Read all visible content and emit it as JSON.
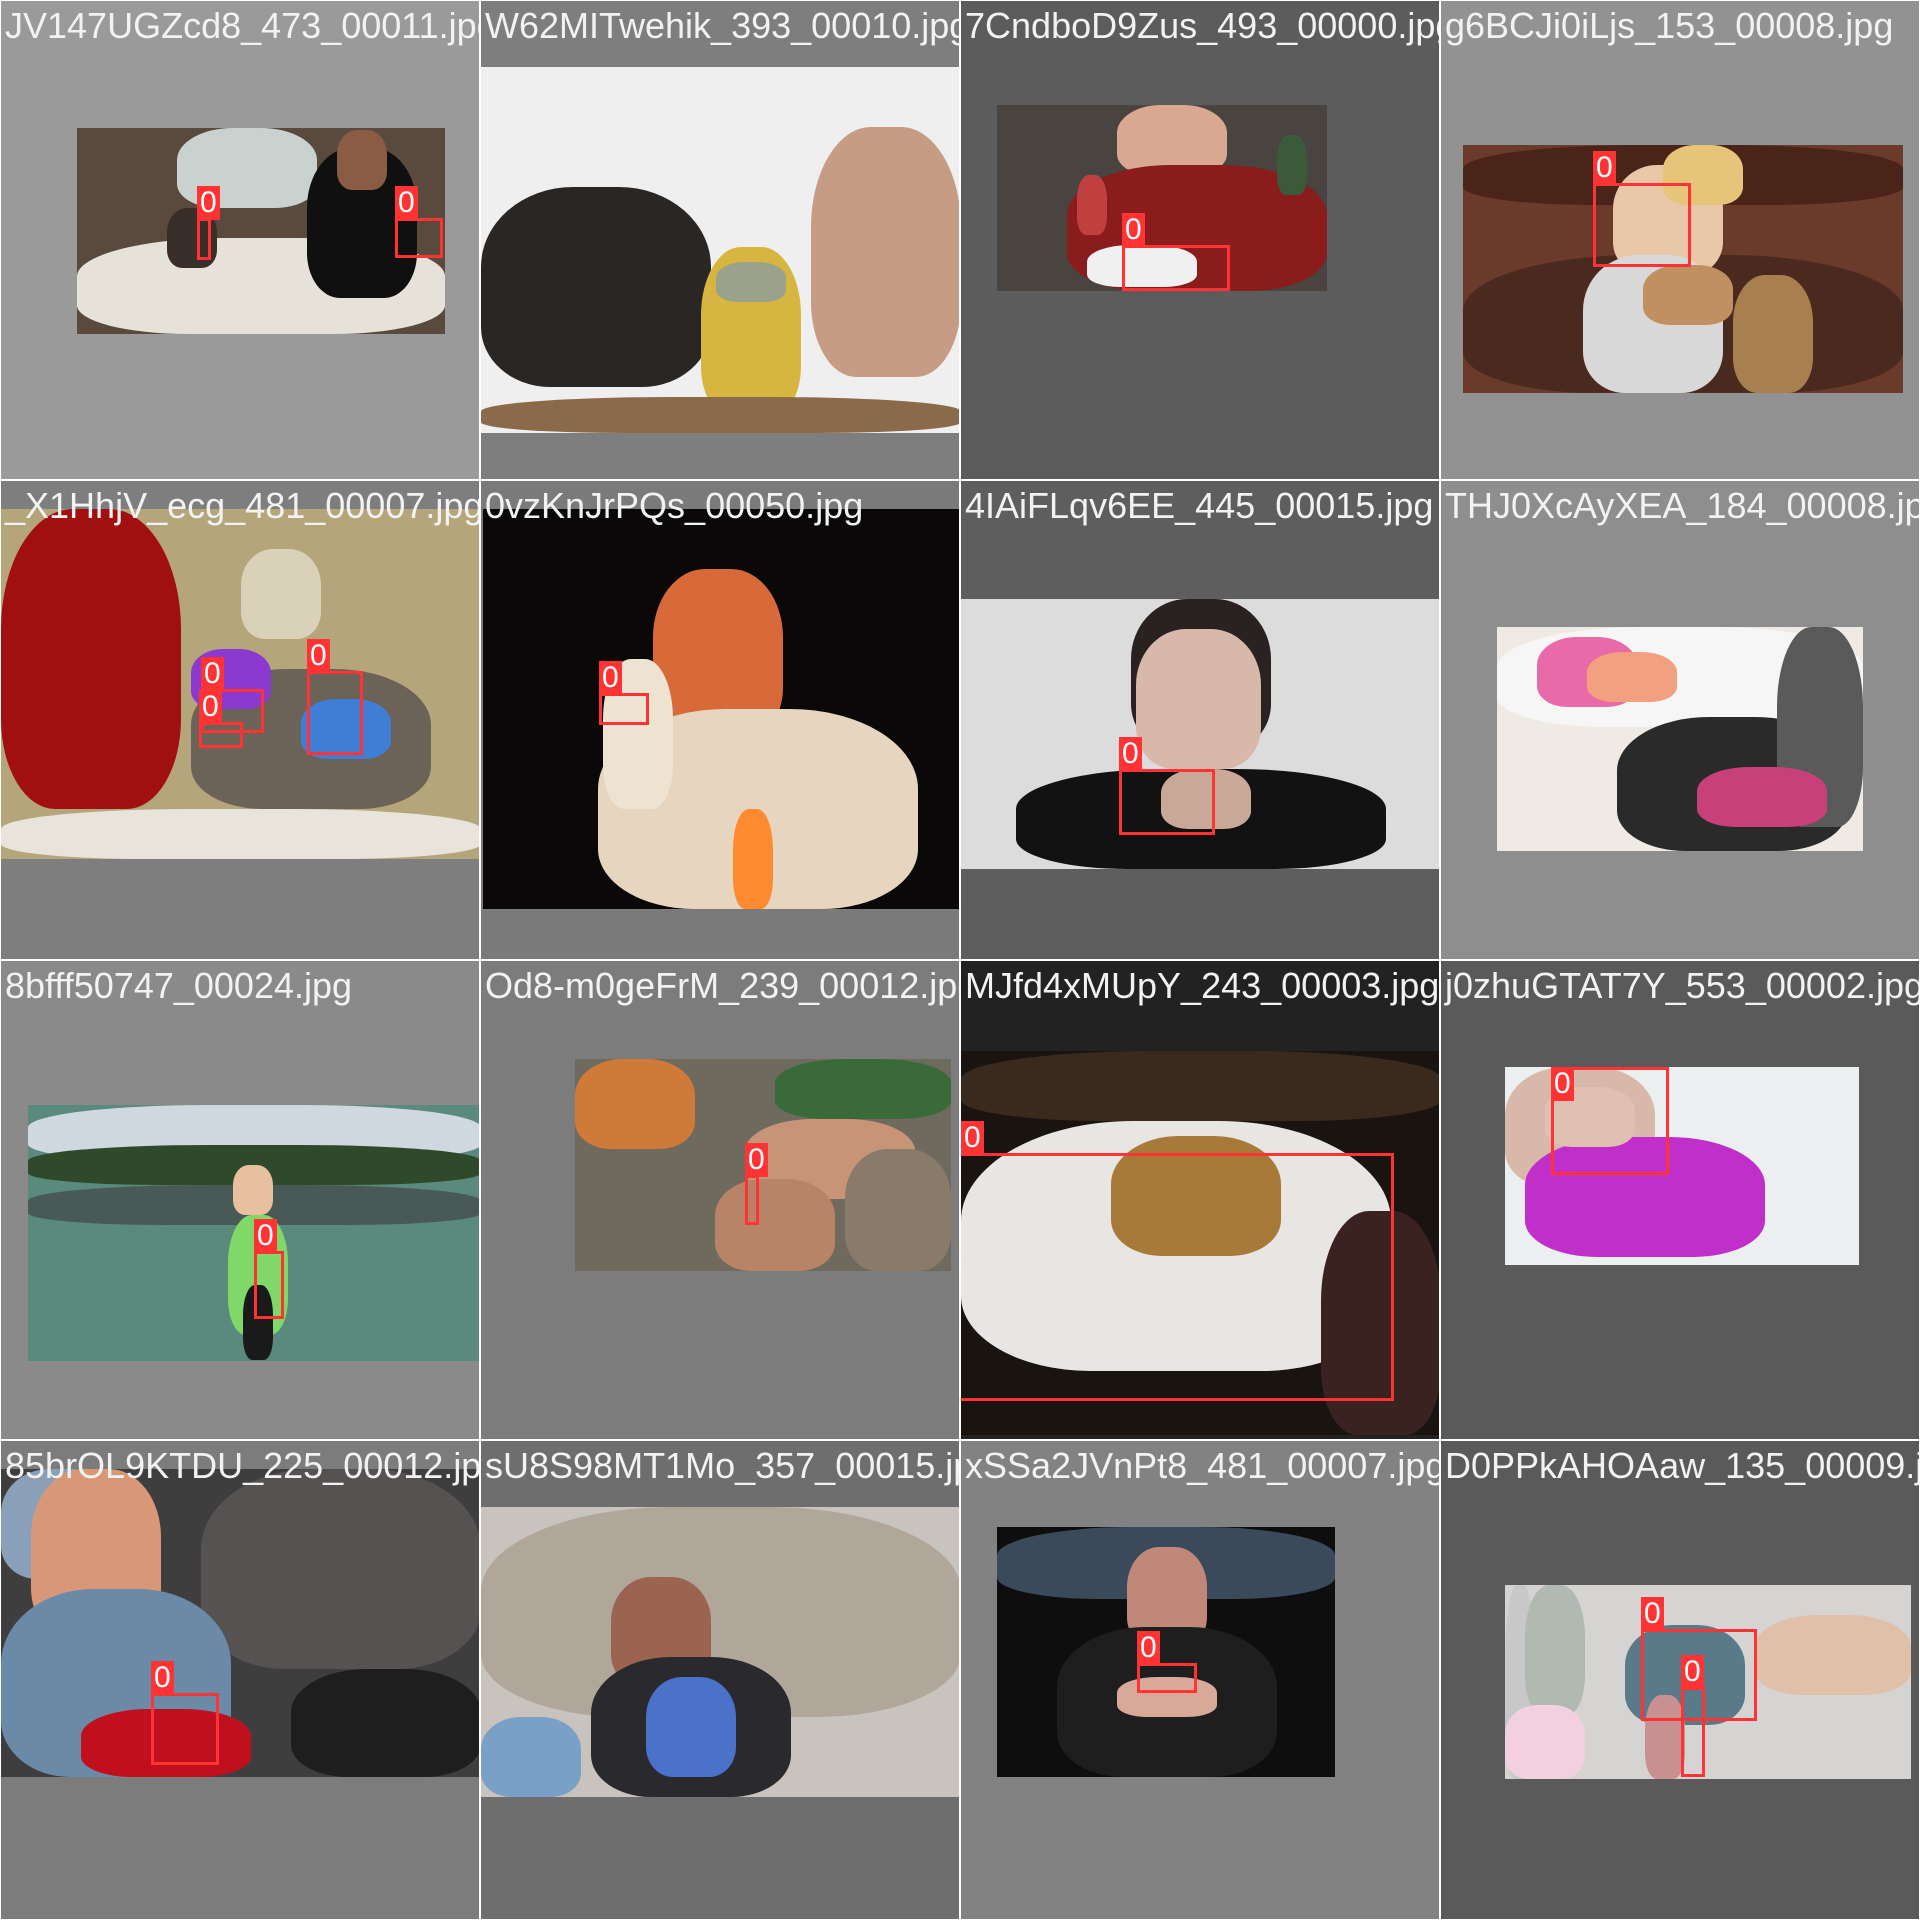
{
  "cells": [
    {
      "file": "JV147UGZcd8_473_00011.jpg",
      "boxes": [
        {
          "label": "0"
        },
        {
          "label": "0"
        }
      ]
    },
    {
      "file": "W62MITwehik_393_00010.jpg",
      "boxes": []
    },
    {
      "file": "7CndboD9Zus_493_00000.jpg",
      "boxes": [
        {
          "label": "0"
        }
      ]
    },
    {
      "file": "g6BCJi0iLjs_153_00008.jpg",
      "boxes": [
        {
          "label": "0"
        }
      ]
    },
    {
      "file": "_X1HhjV_ecg_481_00007.jpg",
      "boxes": [
        {
          "label": "0"
        },
        {
          "label": "0"
        },
        {
          "label": "0"
        }
      ]
    },
    {
      "file": "0vzKnJrPQs_00050.jpg",
      "boxes": [
        {
          "label": "0"
        }
      ]
    },
    {
      "file": "4IAiFLqv6EE_445_00015.jpg",
      "boxes": [
        {
          "label": "0"
        }
      ]
    },
    {
      "file": "THJ0XcAyXEA_184_00008.jpg",
      "boxes": []
    },
    {
      "file": "8bfff50747_00024.jpg",
      "boxes": [
        {
          "label": "0"
        }
      ]
    },
    {
      "file": "Od8-m0geFrM_239_00012.jpg",
      "boxes": [
        {
          "label": "0"
        },
        {
          "label": "0"
        }
      ]
    },
    {
      "file": "MJfd4xMUpY_243_00003.jpg",
      "boxes": [
        {
          "label": "0"
        }
      ]
    },
    {
      "file": "j0zhuGTAT7Y_553_00002.jpg",
      "boxes": [
        {
          "label": "0"
        }
      ]
    },
    {
      "file": "85brOL9KTDU_225_00012.jpg",
      "boxes": [
        {
          "label": "0"
        }
      ]
    },
    {
      "file": "sU8S98MT1Mo_357_00015.jpg",
      "boxes": []
    },
    {
      "file": "xSSa2JVnPt8_481_00007.jpg",
      "boxes": [
        {
          "label": "0"
        }
      ]
    },
    {
      "file": "D0PPkAHOAaw_135_00009.jpg",
      "boxes": [
        {
          "label": "0"
        },
        {
          "label": "0"
        }
      ]
    }
  ]
}
